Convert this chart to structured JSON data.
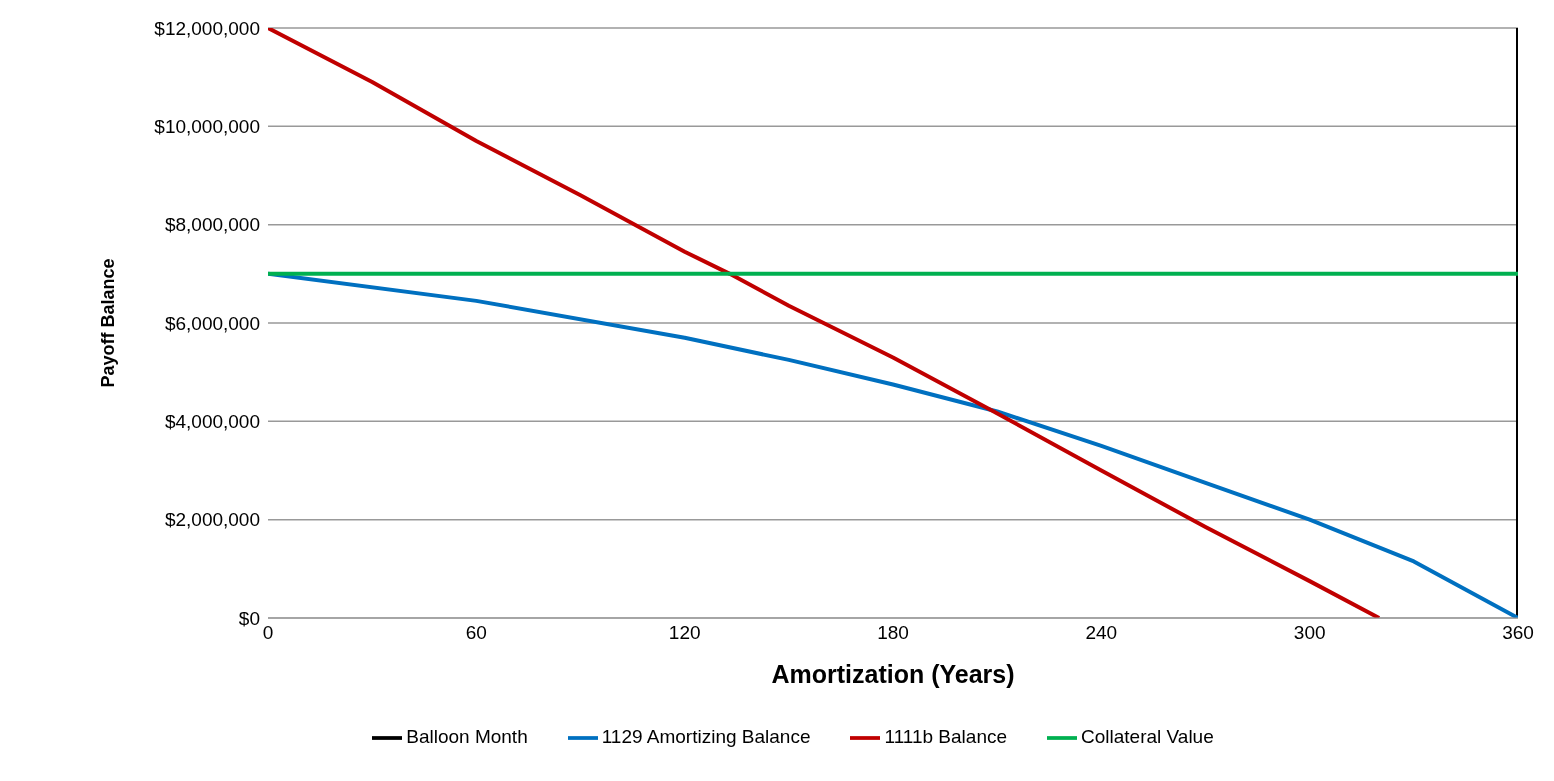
{
  "chart_data": {
    "type": "line",
    "xlabel": "Amortization (Years)",
    "ylabel": "Payoff Balance",
    "xlim": [
      0,
      360
    ],
    "xticks": [
      0,
      60,
      120,
      180,
      240,
      300,
      360
    ],
    "ylim": [
      0,
      12000000
    ],
    "yticks": [
      {
        "value": 0,
        "label": "$0"
      },
      {
        "value": 2000000,
        "label": "$2,000,000"
      },
      {
        "value": 4000000,
        "label": "$4,000,000"
      },
      {
        "value": 6000000,
        "label": "$6,000,000"
      },
      {
        "value": 8000000,
        "label": "$8,000,000"
      },
      {
        "value": 10000000,
        "label": "$10,000,000"
      },
      {
        "value": 12000000,
        "label": "$12,000,000"
      }
    ],
    "grid": "y",
    "legend": "bottom",
    "marker": "none",
    "line_style": "solid",
    "series": [
      {
        "name": "Balloon Month",
        "color": "#000000",
        "x": [
          360,
          360
        ],
        "values": [
          0,
          12000000
        ]
      },
      {
        "name": "1129 Amortizing Balance",
        "color": "#0070c0",
        "x": [
          0,
          60,
          120,
          150,
          180,
          210,
          240,
          270,
          300,
          330,
          360
        ],
        "values": [
          7000000,
          6450000,
          5700000,
          5250000,
          4750000,
          4200000,
          3500000,
          2750000,
          2000000,
          1150000,
          0
        ]
      },
      {
        "name": "1111b Balance",
        "color": "#c00000",
        "x": [
          0,
          30,
          60,
          90,
          120,
          133,
          150,
          180,
          209,
          240,
          270,
          300,
          320
        ],
        "values": [
          12000000,
          10900000,
          9700000,
          8600000,
          7450000,
          7000000,
          6350000,
          5300000,
          4200000,
          3000000,
          1850000,
          750000,
          0
        ]
      },
      {
        "name": "Collateral Value",
        "color": "#00b050",
        "x": [
          0,
          360
        ],
        "values": [
          7000000,
          7000000
        ]
      }
    ]
  }
}
